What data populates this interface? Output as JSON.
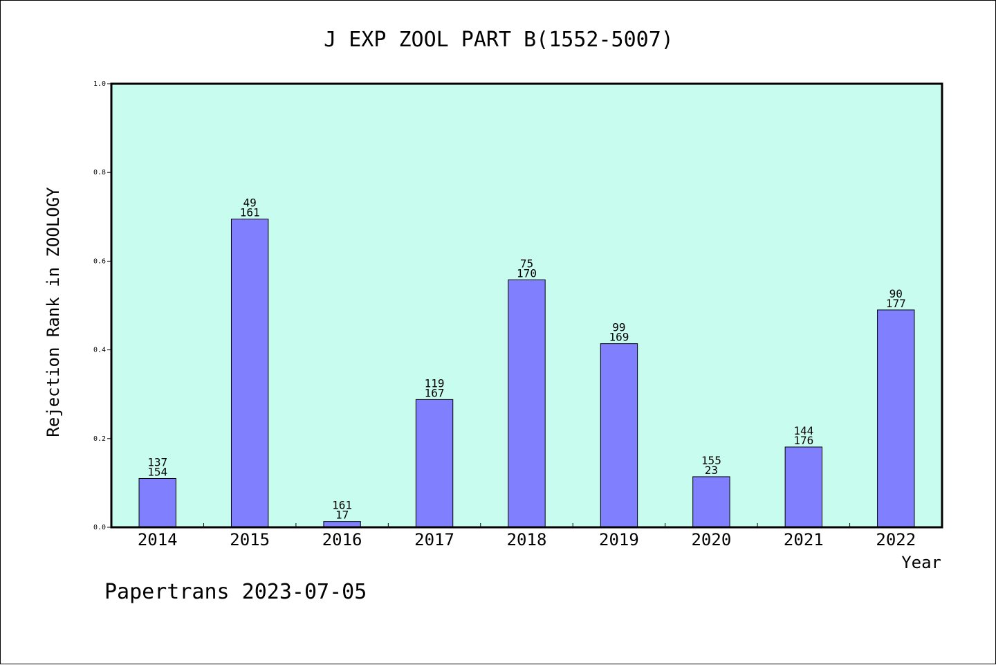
{
  "chart_data": {
    "type": "bar",
    "title": "J EXP ZOOL PART B(1552-5007)",
    "xlabel": "Year",
    "ylabel": "Rejection Rank in ZOOLOGY",
    "ylim": [
      0,
      1.0
    ],
    "yticks": [
      "0.0",
      "0.2",
      "0.4",
      "0.6",
      "0.8",
      "1.0"
    ],
    "grid": false,
    "categories": [
      "2014",
      "2015",
      "2016",
      "2017",
      "2018",
      "2019",
      "2020",
      "2021",
      "2022"
    ],
    "values": [
      0.11,
      0.695,
      0.013,
      0.288,
      0.558,
      0.414,
      0.114,
      0.181,
      0.49
    ],
    "labels_top": [
      "137",
      "49",
      "161",
      "119",
      "75",
      "99",
      "155",
      "144",
      "90"
    ],
    "labels_bottom": [
      "154",
      "161",
      "17",
      "167",
      "170",
      "169",
      "23",
      "176",
      "177"
    ],
    "colors": {
      "bar": "#8080ff",
      "plot_background": "#c8fcee",
      "axis": "#000000"
    }
  },
  "footer": {
    "text": "Papertrans 2023-07-05"
  }
}
